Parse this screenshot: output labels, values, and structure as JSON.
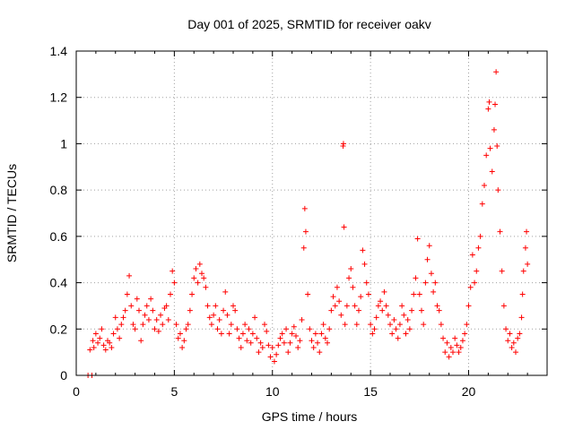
{
  "chart_data": {
    "type": "scatter",
    "title": "Day 001 of 2025, SRMTID for receiver oakv",
    "xlabel": "GPS time / hours",
    "ylabel": "SRMTID / TECUs",
    "xlim": [
      0,
      24
    ],
    "ylim": [
      0,
      1.4
    ],
    "xticks": [
      0,
      5,
      10,
      15,
      20
    ],
    "xtick_labels": [
      "0",
      "5",
      "10",
      "15",
      "20"
    ],
    "yticks": [
      0,
      0.2,
      0.4,
      0.6,
      0.8,
      1.0,
      1.2,
      1.4
    ],
    "ytick_labels": [
      "0",
      "0.2",
      "0.4",
      "0.6",
      "0.8",
      "1",
      "1.2",
      "1.4"
    ],
    "grid": true,
    "marker": "+",
    "color": "#ff0000",
    "series": [
      {
        "name": "SRMTID",
        "points": [
          [
            0.6,
            0.0
          ],
          [
            0.7,
            0.11
          ],
          [
            0.8,
            0.0
          ],
          [
            0.85,
            0.15
          ],
          [
            0.9,
            0.12
          ],
          [
            1.0,
            0.18
          ],
          [
            1.1,
            0.14
          ],
          [
            1.2,
            0.16
          ],
          [
            1.3,
            0.2
          ],
          [
            1.4,
            0.13
          ],
          [
            1.5,
            0.11
          ],
          [
            1.6,
            0.15
          ],
          [
            1.7,
            0.14
          ],
          [
            1.8,
            0.12
          ],
          [
            1.9,
            0.18
          ],
          [
            2.0,
            0.25
          ],
          [
            2.1,
            0.2
          ],
          [
            2.2,
            0.16
          ],
          [
            2.3,
            0.22
          ],
          [
            2.4,
            0.25
          ],
          [
            2.5,
            0.28
          ],
          [
            2.6,
            0.35
          ],
          [
            2.7,
            0.43
          ],
          [
            2.8,
            0.3
          ],
          [
            2.9,
            0.22
          ],
          [
            3.0,
            0.2
          ],
          [
            3.1,
            0.33
          ],
          [
            3.2,
            0.28
          ],
          [
            3.3,
            0.15
          ],
          [
            3.4,
            0.22
          ],
          [
            3.5,
            0.26
          ],
          [
            3.6,
            0.3
          ],
          [
            3.7,
            0.24
          ],
          [
            3.8,
            0.33
          ],
          [
            3.9,
            0.28
          ],
          [
            4.0,
            0.2
          ],
          [
            4.1,
            0.24
          ],
          [
            4.2,
            0.19
          ],
          [
            4.3,
            0.26
          ],
          [
            4.4,
            0.22
          ],
          [
            4.5,
            0.29
          ],
          [
            4.6,
            0.3
          ],
          [
            4.7,
            0.24
          ],
          [
            4.8,
            0.35
          ],
          [
            4.9,
            0.45
          ],
          [
            5.0,
            0.4
          ],
          [
            5.1,
            0.22
          ],
          [
            5.2,
            0.16
          ],
          [
            5.3,
            0.18
          ],
          [
            5.4,
            0.12
          ],
          [
            5.5,
            0.15
          ],
          [
            5.6,
            0.2
          ],
          [
            5.7,
            0.22
          ],
          [
            5.8,
            0.28
          ],
          [
            5.9,
            0.35
          ],
          [
            6.0,
            0.42
          ],
          [
            6.1,
            0.46
          ],
          [
            6.2,
            0.4
          ],
          [
            6.3,
            0.48
          ],
          [
            6.4,
            0.44
          ],
          [
            6.5,
            0.42
          ],
          [
            6.6,
            0.38
          ],
          [
            6.7,
            0.3
          ],
          [
            6.8,
            0.25
          ],
          [
            6.9,
            0.22
          ],
          [
            7.0,
            0.26
          ],
          [
            7.1,
            0.3
          ],
          [
            7.2,
            0.2
          ],
          [
            7.3,
            0.24
          ],
          [
            7.4,
            0.18
          ],
          [
            7.5,
            0.28
          ],
          [
            7.6,
            0.36
          ],
          [
            7.7,
            0.26
          ],
          [
            7.8,
            0.18
          ],
          [
            7.9,
            0.22
          ],
          [
            8.0,
            0.3
          ],
          [
            8.1,
            0.28
          ],
          [
            8.2,
            0.2
          ],
          [
            8.3,
            0.16
          ],
          [
            8.4,
            0.12
          ],
          [
            8.5,
            0.18
          ],
          [
            8.6,
            0.22
          ],
          [
            8.7,
            0.15
          ],
          [
            8.8,
            0.2
          ],
          [
            8.9,
            0.14
          ],
          [
            9.0,
            0.18
          ],
          [
            9.1,
            0.25
          ],
          [
            9.2,
            0.16
          ],
          [
            9.3,
            0.1
          ],
          [
            9.4,
            0.14
          ],
          [
            9.5,
            0.12
          ],
          [
            9.6,
            0.22
          ],
          [
            9.7,
            0.19
          ],
          [
            9.8,
            0.13
          ],
          [
            9.9,
            0.08
          ],
          [
            10.0,
            0.12
          ],
          [
            10.1,
            0.06
          ],
          [
            10.2,
            0.09
          ],
          [
            10.3,
            0.13
          ],
          [
            10.4,
            0.16
          ],
          [
            10.5,
            0.18
          ],
          [
            10.6,
            0.14
          ],
          [
            10.7,
            0.2
          ],
          [
            10.8,
            0.1
          ],
          [
            10.9,
            0.14
          ],
          [
            11.0,
            0.18
          ],
          [
            11.1,
            0.21
          ],
          [
            11.2,
            0.17
          ],
          [
            11.3,
            0.12
          ],
          [
            11.4,
            0.15
          ],
          [
            11.5,
            0.24
          ],
          [
            11.6,
            0.55
          ],
          [
            11.65,
            0.72
          ],
          [
            11.7,
            0.62
          ],
          [
            11.8,
            0.35
          ],
          [
            11.9,
            0.2
          ],
          [
            12.0,
            0.15
          ],
          [
            12.1,
            0.12
          ],
          [
            12.2,
            0.18
          ],
          [
            12.3,
            0.14
          ],
          [
            12.4,
            0.1
          ],
          [
            12.5,
            0.18
          ],
          [
            12.6,
            0.22
          ],
          [
            12.7,
            0.16
          ],
          [
            12.8,
            0.14
          ],
          [
            12.9,
            0.2
          ],
          [
            13.0,
            0.28
          ],
          [
            13.1,
            0.34
          ],
          [
            13.2,
            0.3
          ],
          [
            13.3,
            0.38
          ],
          [
            13.4,
            0.32
          ],
          [
            13.5,
            0.26
          ],
          [
            13.6,
            0.99
          ],
          [
            13.62,
            1.0
          ],
          [
            13.65,
            0.64
          ],
          [
            13.7,
            0.22
          ],
          [
            13.8,
            0.3
          ],
          [
            13.9,
            0.42
          ],
          [
            14.0,
            0.46
          ],
          [
            14.1,
            0.38
          ],
          [
            14.2,
            0.3
          ],
          [
            14.3,
            0.22
          ],
          [
            14.4,
            0.28
          ],
          [
            14.5,
            0.34
          ],
          [
            14.6,
            0.54
          ],
          [
            14.7,
            0.48
          ],
          [
            14.8,
            0.4
          ],
          [
            14.9,
            0.35
          ],
          [
            15.0,
            0.22
          ],
          [
            15.1,
            0.18
          ],
          [
            15.2,
            0.2
          ],
          [
            15.3,
            0.25
          ],
          [
            15.4,
            0.3
          ],
          [
            15.5,
            0.32
          ],
          [
            15.6,
            0.28
          ],
          [
            15.7,
            0.36
          ],
          [
            15.8,
            0.3
          ],
          [
            15.9,
            0.26
          ],
          [
            16.0,
            0.22
          ],
          [
            16.1,
            0.18
          ],
          [
            16.2,
            0.24
          ],
          [
            16.3,
            0.2
          ],
          [
            16.4,
            0.16
          ],
          [
            16.5,
            0.22
          ],
          [
            16.6,
            0.3
          ],
          [
            16.7,
            0.26
          ],
          [
            16.8,
            0.18
          ],
          [
            16.9,
            0.24
          ],
          [
            17.0,
            0.2
          ],
          [
            17.1,
            0.28
          ],
          [
            17.2,
            0.35
          ],
          [
            17.3,
            0.42
          ],
          [
            17.4,
            0.59
          ],
          [
            17.5,
            0.35
          ],
          [
            17.6,
            0.28
          ],
          [
            17.7,
            0.22
          ],
          [
            17.8,
            0.4
          ],
          [
            17.9,
            0.5
          ],
          [
            18.0,
            0.56
          ],
          [
            18.1,
            0.44
          ],
          [
            18.2,
            0.36
          ],
          [
            18.3,
            0.4
          ],
          [
            18.4,
            0.3
          ],
          [
            18.5,
            0.28
          ],
          [
            18.6,
            0.22
          ],
          [
            18.7,
            0.16
          ],
          [
            18.8,
            0.1
          ],
          [
            18.9,
            0.14
          ],
          [
            19.0,
            0.08
          ],
          [
            19.1,
            0.12
          ],
          [
            19.2,
            0.1
          ],
          [
            19.3,
            0.16
          ],
          [
            19.4,
            0.13
          ],
          [
            19.5,
            0.1
          ],
          [
            19.6,
            0.12
          ],
          [
            19.7,
            0.15
          ],
          [
            19.8,
            0.18
          ],
          [
            19.9,
            0.22
          ],
          [
            20.0,
            0.3
          ],
          [
            20.1,
            0.38
          ],
          [
            20.2,
            0.52
          ],
          [
            20.3,
            0.4
          ],
          [
            20.4,
            0.45
          ],
          [
            20.5,
            0.55
          ],
          [
            20.6,
            0.6
          ],
          [
            20.7,
            0.74
          ],
          [
            20.8,
            0.82
          ],
          [
            20.9,
            0.95
          ],
          [
            21.0,
            1.15
          ],
          [
            21.05,
            1.18
          ],
          [
            21.1,
            0.98
          ],
          [
            21.2,
            0.88
          ],
          [
            21.3,
            1.06
          ],
          [
            21.35,
            1.17
          ],
          [
            21.4,
            1.31
          ],
          [
            21.45,
            0.99
          ],
          [
            21.5,
            0.8
          ],
          [
            21.6,
            0.62
          ],
          [
            21.7,
            0.45
          ],
          [
            21.8,
            0.3
          ],
          [
            21.9,
            0.2
          ],
          [
            22.0,
            0.15
          ],
          [
            22.1,
            0.18
          ],
          [
            22.2,
            0.12
          ],
          [
            22.3,
            0.14
          ],
          [
            22.4,
            0.1
          ],
          [
            22.5,
            0.16
          ],
          [
            22.6,
            0.18
          ],
          [
            22.7,
            0.25
          ],
          [
            22.75,
            0.35
          ],
          [
            22.8,
            0.45
          ],
          [
            22.9,
            0.55
          ],
          [
            22.95,
            0.62
          ],
          [
            23.0,
            0.48
          ]
        ]
      }
    ]
  }
}
